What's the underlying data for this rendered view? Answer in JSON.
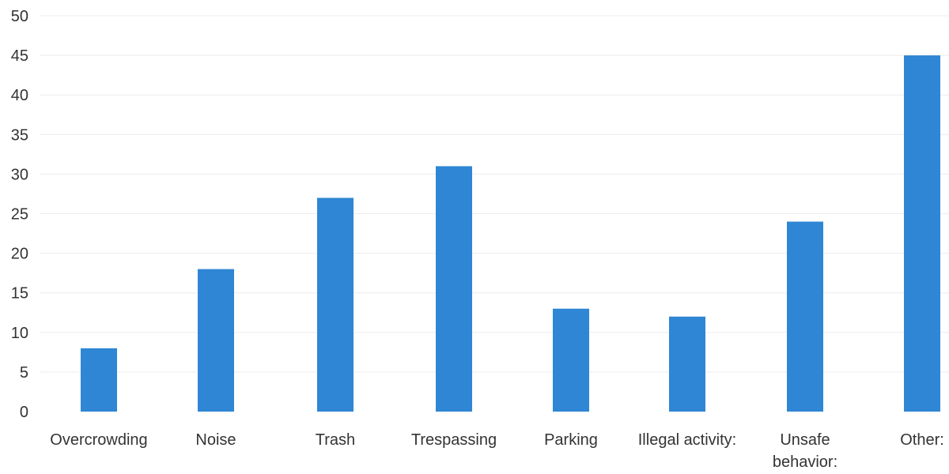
{
  "chart_data": {
    "type": "bar",
    "title": "",
    "xlabel": "",
    "ylabel": "",
    "categories": [
      [
        "Overcrowding"
      ],
      [
        "Noise"
      ],
      [
        "Trash"
      ],
      [
        "Trespassing"
      ],
      [
        "Parking"
      ],
      [
        "Illegal activity:"
      ],
      [
        "Unsafe",
        "behavior:"
      ],
      [
        "Other:"
      ]
    ],
    "values": [
      8,
      18,
      27,
      31,
      13,
      12,
      24,
      45
    ],
    "ylim": [
      0,
      50
    ],
    "yticks": [
      0,
      5,
      10,
      15,
      20,
      25,
      30,
      35,
      40,
      45,
      50
    ],
    "grid": true,
    "legend": "none",
    "colors": {
      "bar": "#2e86d4",
      "grid": "#ececec",
      "text": "#333333"
    }
  }
}
